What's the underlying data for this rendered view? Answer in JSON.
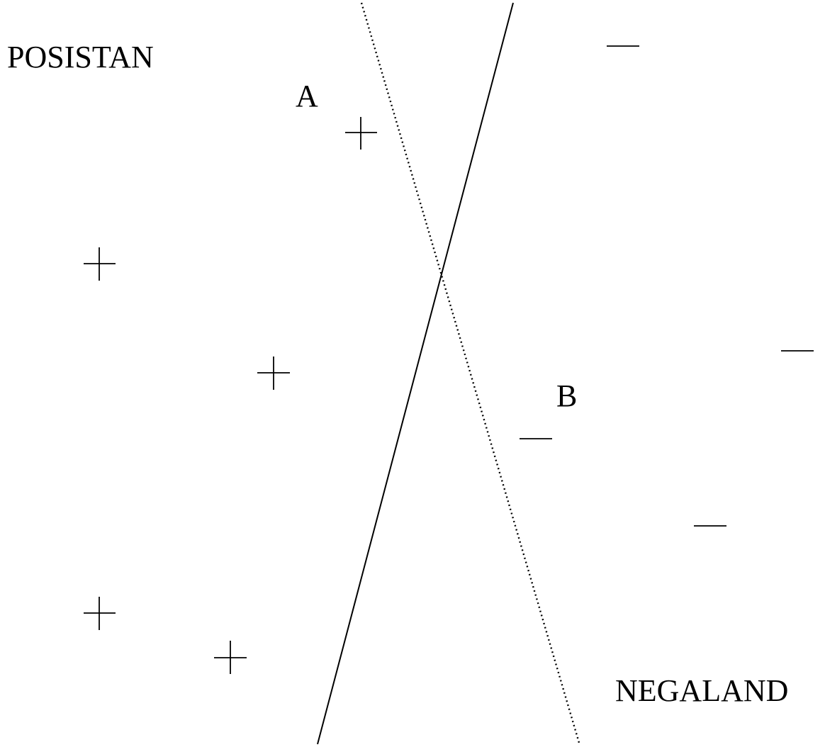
{
  "regions": {
    "top_left": "POSISTAN",
    "bottom_right": "NEGALAND"
  },
  "point_labels": {
    "a": "A",
    "b": "B"
  },
  "mark_symbols": {
    "positive": "+",
    "negative": "—"
  },
  "mark_counts": {
    "positive": 5,
    "negative": 4
  },
  "boundaries": {
    "solid": "solid-line",
    "dotted": "dotted-line"
  },
  "colors": {
    "ink": "#000000",
    "background": "#ffffff"
  }
}
